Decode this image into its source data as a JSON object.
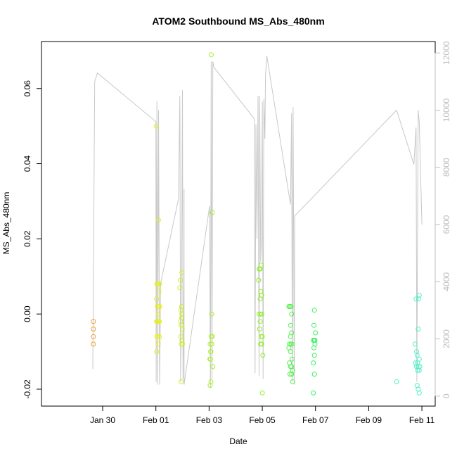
{
  "chart_data": {
    "type": "scatter",
    "title": "ATOM2 Southbound MS_Abs_480nm",
    "xlabel": "Date",
    "ylabel": "MS_Abs_480nm",
    "x_start_date": "2023-01-28",
    "x_range_days": [
      -0.3,
      14.5
    ],
    "x_ticks": [
      {
        "day": 2,
        "label": "Jan 30"
      },
      {
        "day": 4,
        "label": "Feb 01"
      },
      {
        "day": 6,
        "label": "Feb 03"
      },
      {
        "day": 8,
        "label": "Feb 05"
      },
      {
        "day": 10,
        "label": "Feb 07"
      },
      {
        "day": 12,
        "label": "Feb 09"
      },
      {
        "day": 14,
        "label": "Feb 11"
      }
    ],
    "y_left": {
      "range": [
        -0.0245,
        0.0725
      ],
      "ticks": [
        {
          "value": -0.02,
          "label": "-0.02"
        },
        {
          "value": 0.0,
          "label": "0.00"
        },
        {
          "value": 0.02,
          "label": "0.02"
        },
        {
          "value": 0.04,
          "label": "0.04"
        },
        {
          "value": 0.06,
          "label": "0.06"
        }
      ]
    },
    "y_right": {
      "range": [
        -350,
        12400
      ],
      "ticks": [
        {
          "value": 0,
          "label": "0"
        },
        {
          "value": 2000,
          "label": "2000"
        },
        {
          "value": 4000,
          "label": "4000"
        },
        {
          "value": 6000,
          "label": "6000"
        },
        {
          "value": 8000,
          "label": "8000"
        },
        {
          "value": 10000,
          "label": "10000"
        },
        {
          "value": 12000,
          "label": "12000"
        }
      ],
      "color": "#bebebe"
    },
    "line_color": "#c8c8c8",
    "depth_line": [
      [
        1.63,
        950
      ],
      [
        1.7,
        11000
      ],
      [
        1.8,
        11300
      ],
      [
        4.0,
        9600
      ],
      [
        4.01,
        500
      ],
      [
        4.04,
        10300
      ],
      [
        4.07,
        400
      ],
      [
        4.1,
        10000
      ],
      [
        4.14,
        400
      ],
      [
        4.18,
        3950
      ],
      [
        4.85,
        6900
      ],
      [
        4.9,
        10500
      ],
      [
        4.93,
        500
      ],
      [
        4.97,
        4500
      ],
      [
        5.0,
        10700
      ],
      [
        5.02,
        600
      ],
      [
        5.06,
        4350
      ],
      [
        5.06,
        7250
      ],
      [
        5.06,
        400
      ],
      [
        6.02,
        6650
      ],
      [
        6.05,
        300
      ],
      [
        6.08,
        11700
      ],
      [
        6.11,
        600
      ],
      [
        6.14,
        11700
      ],
      [
        6.18,
        11500
      ],
      [
        7.7,
        9700
      ],
      [
        7.73,
        800
      ],
      [
        7.76,
        9500
      ],
      [
        7.8,
        5500
      ],
      [
        7.84,
        10500
      ],
      [
        7.88,
        700
      ],
      [
        7.9,
        10500
      ],
      [
        7.94,
        4700
      ],
      [
        7.97,
        5500
      ],
      [
        8.0,
        10300
      ],
      [
        8.03,
        600
      ],
      [
        8.06,
        10400
      ],
      [
        8.1,
        9000
      ],
      [
        8.12,
        11200
      ],
      [
        8.17,
        11900
      ],
      [
        9.06,
        6700
      ],
      [
        9.1,
        9900
      ],
      [
        9.13,
        500
      ],
      [
        9.16,
        10100
      ],
      [
        9.2,
        400
      ],
      [
        9.22,
        6300
      ],
      [
        13.05,
        10000
      ],
      [
        13.7,
        8100
      ],
      [
        13.78,
        9400
      ],
      [
        13.81,
        500
      ],
      [
        13.86,
        10000
      ],
      [
        13.9,
        9600
      ],
      [
        14.0,
        6000
      ]
    ],
    "series": [
      {
        "color": "#f0a030",
        "points": [
          [
            1.65,
            -0.002
          ],
          [
            1.65,
            -0.004
          ],
          [
            1.65,
            -0.006
          ],
          [
            1.65,
            -0.008
          ]
        ]
      },
      {
        "color": "#e6f01e",
        "points": [
          [
            4.01,
            0.05
          ],
          [
            4.04,
            0.008
          ],
          [
            4.05,
            0.008
          ],
          [
            4.08,
            0.008
          ],
          [
            4.1,
            0.025
          ],
          [
            4.12,
            0.006
          ],
          [
            4.14,
            0.008
          ],
          [
            4.15,
            0.002
          ],
          [
            4.03,
            0.004
          ],
          [
            4.06,
            0.002
          ],
          [
            4.09,
            0.0
          ],
          [
            4.11,
            0.002
          ],
          [
            4.03,
            -0.002
          ],
          [
            4.06,
            -0.002
          ],
          [
            4.1,
            -0.002
          ],
          [
            4.13,
            -0.002
          ],
          [
            4.04,
            -0.006
          ],
          [
            4.08,
            -0.006
          ],
          [
            4.13,
            -0.006
          ],
          [
            4.03,
            -0.01
          ],
          [
            4.09,
            -0.008
          ]
        ]
      },
      {
        "color": "#ccf028",
        "points": [
          [
            4.9,
            0.007
          ],
          [
            4.92,
            0.009
          ],
          [
            4.98,
            0.011
          ],
          [
            4.94,
            0.001
          ],
          [
            4.97,
            0.002
          ],
          [
            4.98,
            0.0
          ],
          [
            4.93,
            -0.002
          ],
          [
            4.95,
            -0.003
          ],
          [
            4.97,
            -0.001
          ],
          [
            4.99,
            -0.004
          ],
          [
            4.94,
            -0.006
          ],
          [
            4.98,
            -0.007
          ],
          [
            4.96,
            -0.008
          ],
          [
            5.0,
            -0.008
          ],
          [
            4.95,
            -0.018
          ]
        ]
      },
      {
        "color": "#aaf028",
        "points": [
          [
            6.08,
            0.069
          ],
          [
            6.12,
            0.027
          ],
          [
            6.1,
            0.0
          ],
          [
            6.04,
            -0.008
          ],
          [
            6.08,
            -0.006
          ],
          [
            6.12,
            -0.006
          ],
          [
            6.06,
            -0.01
          ],
          [
            6.1,
            -0.008
          ],
          [
            6.03,
            -0.012
          ],
          [
            6.07,
            -0.01
          ],
          [
            6.05,
            -0.012
          ],
          [
            6.14,
            -0.014
          ],
          [
            6.07,
            -0.018
          ],
          [
            6.04,
            -0.019
          ]
        ]
      },
      {
        "color": "#8cf028",
        "points": [
          [
            7.88,
            0.012
          ],
          [
            7.92,
            0.012
          ],
          [
            7.96,
            0.013
          ],
          [
            7.86,
            0.009
          ],
          [
            7.94,
            0.006
          ],
          [
            7.92,
            0.004
          ],
          [
            7.98,
            0.005
          ],
          [
            7.88,
            0.0
          ],
          [
            7.94,
            0.0
          ],
          [
            7.98,
            0.0
          ],
          [
            7.92,
            -0.002
          ],
          [
            7.9,
            -0.004
          ],
          [
            7.96,
            -0.006
          ],
          [
            8.0,
            -0.006
          ],
          [
            7.94,
            -0.008
          ],
          [
            7.98,
            -0.008
          ],
          [
            8.02,
            -0.011
          ],
          [
            8.0,
            -0.021
          ]
        ]
      },
      {
        "color": "#55f050",
        "points": [
          [
            9.0,
            0.002
          ],
          [
            9.04,
            0.002
          ],
          [
            9.08,
            0.002
          ],
          [
            9.1,
            0.0
          ],
          [
            9.06,
            -0.003
          ],
          [
            9.1,
            -0.005
          ],
          [
            9.06,
            -0.006
          ],
          [
            9.02,
            -0.008
          ],
          [
            9.08,
            -0.008
          ],
          [
            9.12,
            -0.008
          ],
          [
            9.0,
            -0.009
          ],
          [
            9.06,
            -0.01
          ],
          [
            9.12,
            -0.012
          ],
          [
            9.02,
            -0.013
          ],
          [
            9.06,
            -0.014
          ],
          [
            9.1,
            -0.014
          ],
          [
            9.14,
            -0.015
          ],
          [
            9.04,
            -0.016
          ],
          [
            9.1,
            -0.016
          ],
          [
            9.14,
            -0.018
          ]
        ]
      },
      {
        "color": "#3cf064",
        "points": [
          [
            9.96,
            0.001
          ],
          [
            9.94,
            -0.003
          ],
          [
            10.0,
            -0.005
          ],
          [
            9.92,
            -0.007
          ],
          [
            9.96,
            -0.007
          ],
          [
            9.98,
            -0.007
          ],
          [
            9.94,
            -0.009
          ],
          [
            9.98,
            -0.008
          ],
          [
            9.96,
            -0.011
          ],
          [
            9.92,
            -0.013
          ],
          [
            9.96,
            -0.016
          ],
          [
            9.92,
            -0.021
          ]
        ]
      },
      {
        "color": "#50f0c8",
        "points": [
          [
            13.05,
            -0.018
          ],
          [
            13.78,
            0.004
          ],
          [
            13.9,
            0.005
          ],
          [
            13.88,
            0.004
          ],
          [
            13.86,
            -0.004
          ],
          [
            13.74,
            -0.008
          ],
          [
            13.8,
            -0.01
          ],
          [
            13.82,
            -0.011
          ],
          [
            13.76,
            -0.013
          ],
          [
            13.84,
            -0.013
          ],
          [
            13.9,
            -0.012
          ],
          [
            13.8,
            -0.014
          ],
          [
            13.86,
            -0.014
          ],
          [
            13.92,
            -0.014
          ],
          [
            13.84,
            -0.015
          ],
          [
            13.9,
            -0.015
          ],
          [
            13.82,
            -0.019
          ],
          [
            13.86,
            -0.02
          ],
          [
            13.9,
            -0.021
          ]
        ]
      }
    ]
  }
}
